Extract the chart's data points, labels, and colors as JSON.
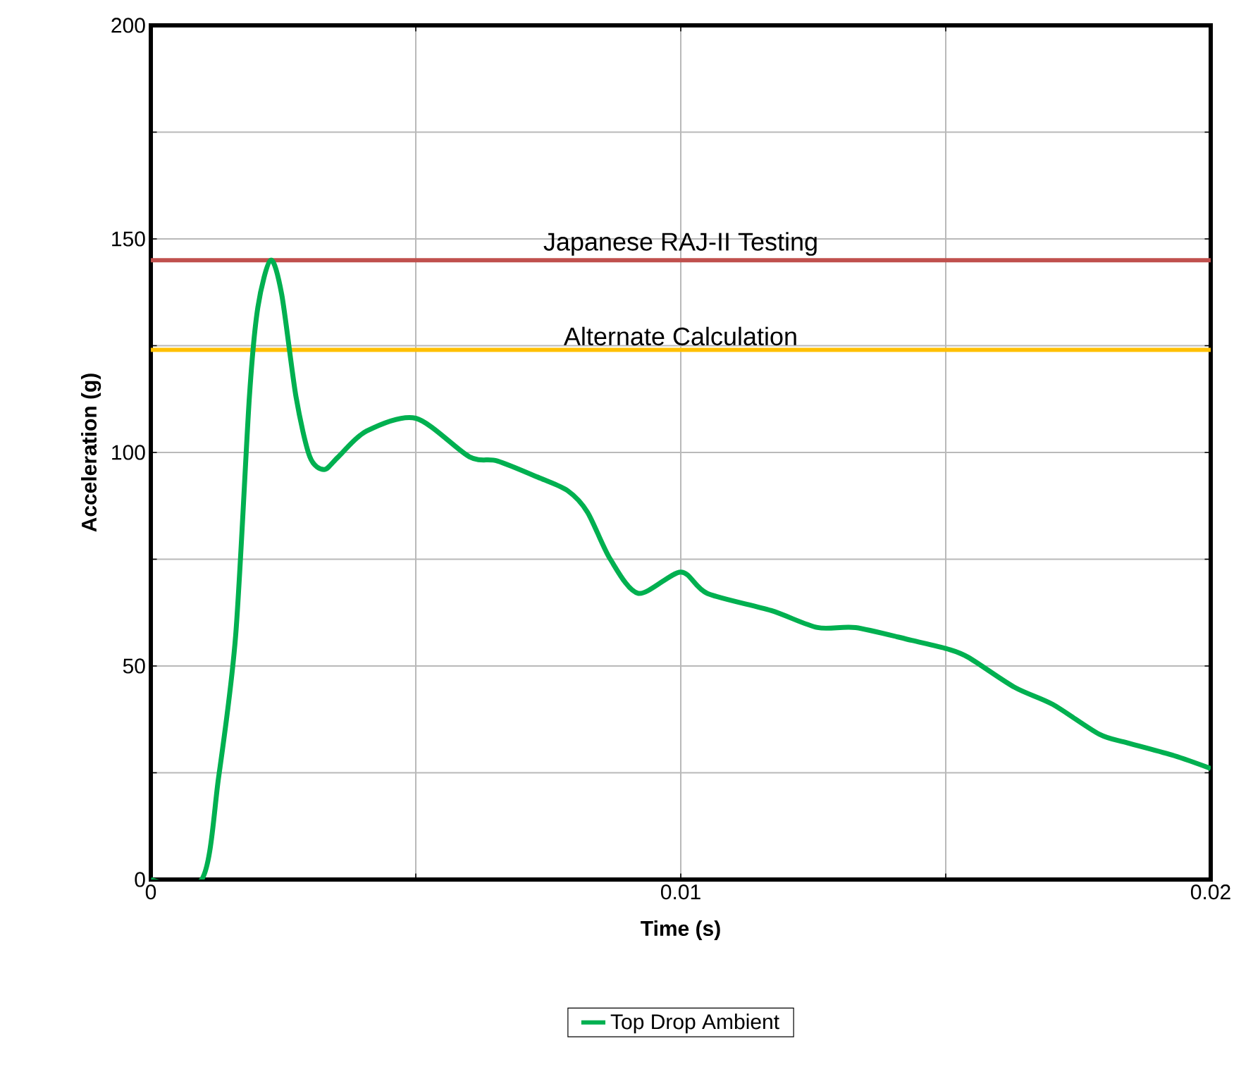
{
  "chart_data": {
    "type": "line",
    "xlabel": "Time (s)",
    "ylabel": "Acceleration (g)",
    "xlim": [
      0,
      0.02
    ],
    "ylim": [
      0,
      200
    ],
    "xticks": [
      0,
      {
        "value": 0.005,
        "label": null
      },
      0.01,
      {
        "value": 0.015,
        "label": null
      },
      0.02
    ],
    "yticks": [
      0,
      {
        "value": 25,
        "label": null
      },
      50,
      {
        "value": 75,
        "label": null
      },
      100,
      {
        "value": 125,
        "label": null
      },
      150,
      {
        "value": 175,
        "label": null
      },
      200
    ],
    "grid": true,
    "legend": "bottom",
    "marker": "none",
    "line_style": "solid",
    "series": [
      {
        "name": "Top Drop Ambient",
        "color": "#00b050",
        "x": [
          0,
          0.00096,
          0.00128,
          0.0016,
          0.00186,
          0.00202,
          0.00226,
          0.00247,
          0.00274,
          0.003,
          0.00327,
          0.00354,
          0.00407,
          0.005,
          0.00601,
          0.00654,
          0.00734,
          0.00787,
          0.00824,
          0.00867,
          0.0092,
          0.01,
          0.0105,
          0.0117,
          0.01258,
          0.0133,
          0.01436,
          0.01503,
          0.01543,
          0.0163,
          0.01702,
          0.0179,
          0.01843,
          0.01931,
          0.02
        ],
        "values": [
          0,
          0,
          24,
          57,
          113,
          134,
          145,
          137,
          113,
          99,
          96,
          99,
          105,
          108,
          99,
          98,
          94,
          91,
          86,
          75,
          67,
          72,
          67,
          63,
          59,
          59,
          56,
          54,
          52,
          45,
          41,
          34,
          32,
          29,
          26
        ]
      }
    ],
    "ref_lines": [
      {
        "axis": "y",
        "value": 145,
        "label": "Japanese RAJ-II Testing",
        "color": "#c0504d"
      },
      {
        "axis": "y",
        "value": 124,
        "label": "Alternate Calculation",
        "color": "#ffc000"
      }
    ]
  }
}
